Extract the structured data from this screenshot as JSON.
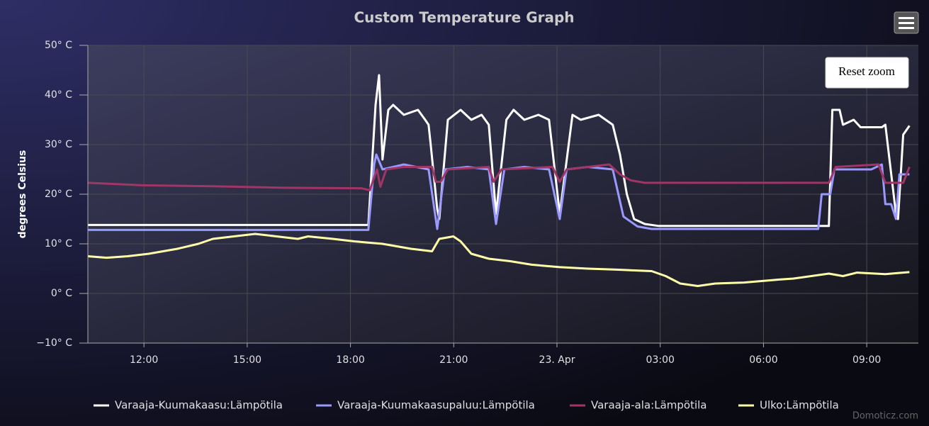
{
  "chart_data": {
    "type": "line",
    "title": "Custom Temperature Graph",
    "y_label": "degrees Celsius",
    "xlim": [
      10.37,
      34.5
    ],
    "ylim": [
      -10,
      50
    ],
    "grid": true,
    "legend": "bottom",
    "xticks": [
      {
        "value": 12,
        "label": "12:00"
      },
      {
        "value": 15,
        "label": "15:00"
      },
      {
        "value": 18,
        "label": "18:00"
      },
      {
        "value": 21,
        "label": "21:00"
      },
      {
        "value": 24,
        "label": "23. Apr"
      },
      {
        "value": 27,
        "label": "03:00"
      },
      {
        "value": 30,
        "label": "06:00"
      },
      {
        "value": 33,
        "label": "09:00"
      }
    ],
    "yticks": [
      {
        "value": -10,
        "label": "−10° C"
      },
      {
        "value": 0,
        "label": "0° C"
      },
      {
        "value": 10,
        "label": "10° C"
      },
      {
        "value": 20,
        "label": "20° C"
      },
      {
        "value": 30,
        "label": "30° C"
      },
      {
        "value": 40,
        "label": "40° C"
      },
      {
        "value": 50,
        "label": "50° C"
      }
    ],
    "series": [
      {
        "name": "Varaaja-Kuumakaasu:Lämpötila",
        "color": "#ffffff",
        "x": [
          10.37,
          18.52,
          18.73,
          18.83,
          18.93,
          19.1,
          19.24,
          19.55,
          19.96,
          20.17,
          20.27,
          20.33,
          20.52,
          20.58,
          20.83,
          21.2,
          21.51,
          21.81,
          22.02,
          22.23,
          22.53,
          22.74,
          23.05,
          23.46,
          23.77,
          24.08,
          24.45,
          24.69,
          25.21,
          25.62,
          25.83,
          26.03,
          26.24,
          26.55,
          26.96,
          31.9,
          32.0,
          32.21,
          32.31,
          32.62,
          32.82,
          33.44,
          33.54,
          33.85,
          33.91,
          34.06,
          34.24
        ],
        "values": [
          13.8,
          13.8,
          38,
          44,
          27,
          37,
          38,
          36,
          37,
          35,
          34,
          30,
          17,
          15,
          35,
          37,
          35,
          36,
          34,
          16,
          35,
          37,
          35,
          36,
          35,
          16,
          36,
          35,
          36,
          34,
          28,
          20,
          15,
          14,
          13.6,
          13.6,
          37,
          37,
          34,
          35,
          33.5,
          33.5,
          34,
          16,
          15,
          32,
          33.8
        ]
      },
      {
        "name": "Varaaja-Kuumakaasupaluu:Lämpötila",
        "color": "#9999ff",
        "x": [
          10.37,
          18.52,
          18.69,
          18.75,
          18.93,
          19.55,
          20.27,
          20.52,
          20.74,
          21.4,
          22.02,
          22.23,
          22.47,
          23.05,
          23.77,
          24.08,
          24.28,
          24.9,
          25.62,
          25.93,
          26.34,
          26.75,
          31.59,
          31.69,
          31.94,
          32.06,
          33.13,
          33.44,
          33.54,
          33.71,
          33.85,
          33.95,
          34.24
        ],
        "values": [
          12.8,
          12.8,
          26,
          28,
          25,
          26,
          25,
          13,
          25,
          25.5,
          25,
          14,
          25,
          25.5,
          25,
          15,
          25,
          25.5,
          25,
          15.5,
          13.5,
          13,
          13,
          20,
          20,
          25,
          25,
          26,
          18,
          18,
          15,
          24,
          24
        ]
      },
      {
        "name": "Varaaja-ala:Lämpötila",
        "color": "#a03566",
        "x": [
          10.37,
          11.94,
          14.0,
          16.05,
          18.32,
          18.56,
          18.77,
          18.87,
          19.04,
          19.55,
          20.37,
          20.48,
          20.62,
          20.83,
          22.02,
          22.16,
          22.39,
          23.87,
          24.08,
          24.28,
          25.52,
          25.83,
          26.14,
          26.55,
          31.9,
          32.1,
          33.34,
          33.54,
          34.06,
          34.24
        ],
        "values": [
          22.3,
          21.8,
          21.6,
          21.3,
          21.2,
          20.8,
          25,
          21.5,
          25,
          25.5,
          25.5,
          22.5,
          22.5,
          25,
          25.5,
          22.5,
          25,
          25.5,
          22.5,
          25,
          26,
          24,
          22.8,
          22.3,
          22.3,
          25.5,
          26,
          22.3,
          22.3,
          25.5
        ]
      },
      {
        "name": "Ulko:Lämpötila",
        "color": "#ffffaa",
        "x": [
          10.37,
          10.91,
          11.53,
          12.14,
          12.97,
          13.58,
          14.0,
          14.61,
          15.23,
          15.85,
          16.47,
          16.77,
          17.49,
          18.11,
          18.93,
          19.76,
          20.37,
          20.58,
          20.99,
          21.2,
          21.51,
          22.02,
          22.64,
          23.26,
          24.08,
          24.9,
          25.72,
          26.75,
          27.16,
          27.58,
          28.09,
          28.6,
          29.43,
          30.46,
          30.87,
          31.9,
          32.31,
          32.72,
          33.54,
          34.24
        ],
        "values": [
          7.5,
          7.2,
          7.5,
          8,
          9,
          10,
          11,
          11.5,
          12,
          11.5,
          11,
          11.5,
          11,
          10.5,
          10,
          9,
          8.5,
          11,
          11.5,
          10.5,
          8,
          7,
          6.5,
          5.8,
          5.3,
          5,
          4.8,
          4.5,
          3.5,
          2,
          1.5,
          2,
          2.2,
          2.8,
          3,
          4,
          3.5,
          4.2,
          3.9,
          4.3
        ]
      }
    ]
  },
  "ui": {
    "reset_zoom": "Reset zoom",
    "credits": "Domoticz.com"
  }
}
